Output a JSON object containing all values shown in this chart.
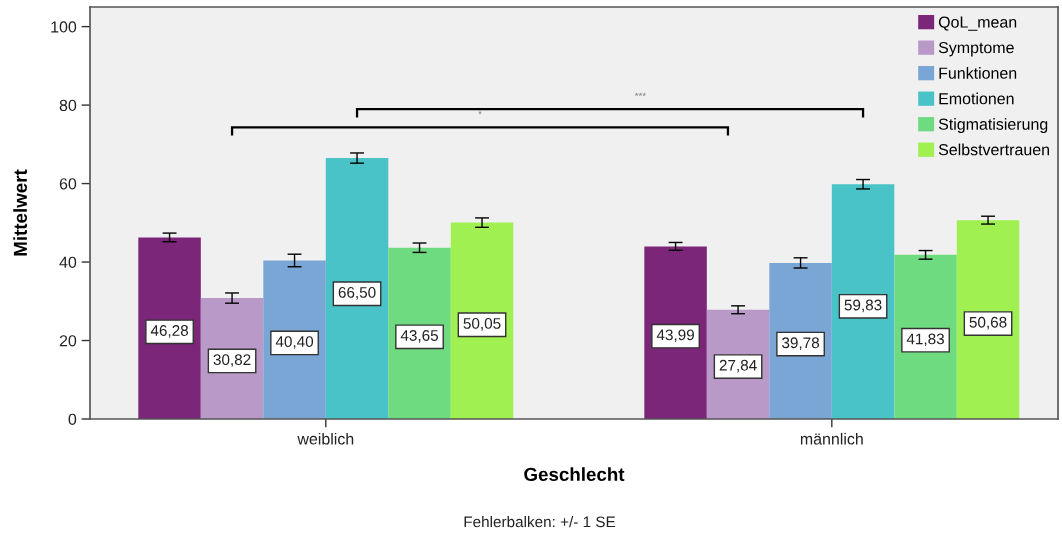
{
  "chart_data": {
    "type": "bar",
    "categories": [
      "weiblich",
      "männlich"
    ],
    "series": [
      {
        "name": "QoL_mean",
        "color": "#7b2679",
        "values": [
          46.28,
          43.99
        ],
        "errors": [
          1.1,
          1.0
        ],
        "value_labels": [
          "46,28",
          "43,99"
        ]
      },
      {
        "name": "Symptome",
        "color": "#b899c8",
        "values": [
          30.82,
          27.84
        ],
        "errors": [
          1.3,
          1.0
        ],
        "value_labels": [
          "30,82",
          "27,84"
        ]
      },
      {
        "name": "Funktionen",
        "color": "#7aa6d6",
        "values": [
          40.4,
          39.78
        ],
        "errors": [
          1.6,
          1.3
        ],
        "value_labels": [
          "40,40",
          "39,78"
        ]
      },
      {
        "name": "Emotionen",
        "color": "#4ac3c8",
        "values": [
          66.5,
          59.83
        ],
        "errors": [
          1.3,
          1.2
        ],
        "value_labels": [
          "66,50",
          "59,83"
        ]
      },
      {
        "name": "Stigmatisierung",
        "color": "#6fdb80",
        "values": [
          43.65,
          41.83
        ],
        "errors": [
          1.2,
          1.1
        ],
        "value_labels": [
          "43,65",
          "41,83"
        ]
      },
      {
        "name": "Selbstvertrauen",
        "color": "#a0f052",
        "values": [
          50.05,
          50.68
        ],
        "errors": [
          1.2,
          1.0
        ],
        "value_labels": [
          "50,05",
          "50,68"
        ]
      }
    ],
    "ylim": [
      0,
      105
    ],
    "yticks": [
      0,
      20,
      40,
      60,
      80,
      100
    ],
    "xlabel": "Geschlecht",
    "ylabel": "Mittelwert",
    "annotations": [
      "*",
      "***",
      "Fehlerbalken: +/- 1 SE"
    ],
    "legend": "top right"
  }
}
